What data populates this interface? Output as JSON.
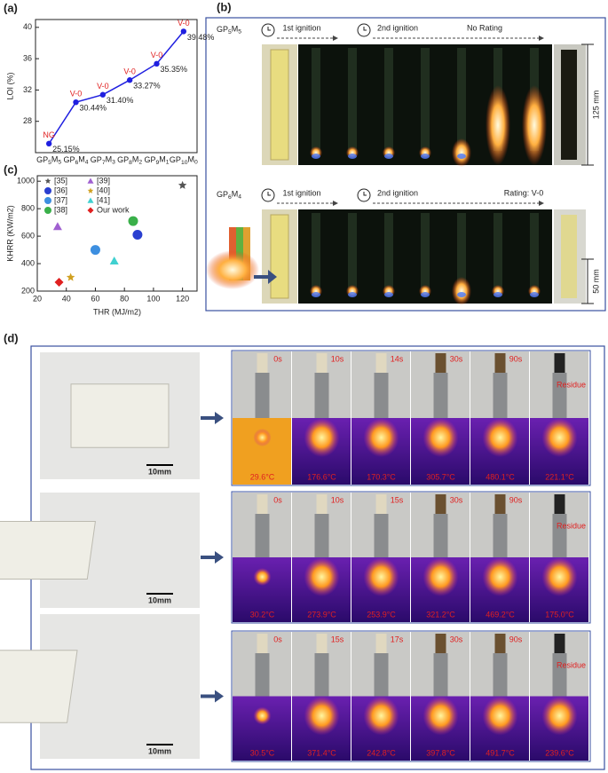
{
  "panel_labels": [
    "(a)",
    "(b)",
    "(c)",
    "(d)"
  ],
  "chart_data": [
    {
      "type": "line",
      "ylabel": "LOI (%)",
      "categories": [
        "GP5M5",
        "GP6M4",
        "GP7M3",
        "GP8M2",
        "GP9M1",
        "GP10M0"
      ],
      "values": [
        25.15,
        30.44,
        31.4,
        33.27,
        35.35,
        39.48
      ],
      "value_labels": [
        "25.15%",
        "30.44%",
        "31.40%",
        "33.27%",
        "35.35%",
        "39.48%"
      ],
      "annotations": [
        "NG",
        "V-0",
        "V-0",
        "V-0",
        "V-0",
        "V-0"
      ],
      "color": "#1f1fe0",
      "ylim": [
        24,
        41
      ],
      "yticks": [
        28,
        32,
        36,
        40
      ]
    },
    {
      "type": "scatter",
      "xlabel": "THR (MJ/m2)",
      "ylabel": "KHRR (KW/m2)",
      "xlim": [
        20,
        130
      ],
      "xticks": [
        20,
        40,
        60,
        80,
        100,
        120
      ],
      "ylim": [
        200,
        1040
      ],
      "yticks": [
        200,
        400,
        600,
        800,
        1000
      ],
      "series": [
        {
          "name": "[35]",
          "color": "#555555",
          "marker": "star",
          "x": [
            120
          ],
          "values": [
            970
          ]
        },
        {
          "name": "[36]",
          "color": "#2a3fd0",
          "marker": "circle",
          "x": [
            89
          ],
          "values": [
            610
          ]
        },
        {
          "name": "[37]",
          "color": "#3d8fe0",
          "marker": "circle",
          "x": [
            60
          ],
          "values": [
            500
          ]
        },
        {
          "name": "[38]",
          "color": "#3ab04a",
          "marker": "circle",
          "x": [
            86
          ],
          "values": [
            710
          ]
        },
        {
          "name": "[39]",
          "color": "#a060d0",
          "marker": "triangle",
          "x": [
            34
          ],
          "values": [
            670
          ]
        },
        {
          "name": "[40]",
          "color": "#d0a020",
          "marker": "star",
          "x": [
            43
          ],
          "values": [
            300
          ]
        },
        {
          "name": "[41]",
          "color": "#40d0d0",
          "marker": "triangle",
          "x": [
            73
          ],
          "values": [
            420
          ]
        },
        {
          "name": "Our work",
          "color": "#e02020",
          "marker": "diamond",
          "x": [
            35
          ],
          "values": [
            265
          ]
        }
      ]
    }
  ],
  "figure_b": {
    "rows": [
      {
        "sample": "GP5M5",
        "first": "1st ignition",
        "second": "2nd ignition",
        "rating": "No Rating",
        "dimension": "125 mm"
      },
      {
        "sample": "GP6M4",
        "first": "1st ignition",
        "second": "2nd ignition",
        "rating": "Rating: V-0",
        "dimension": "50 mm"
      }
    ]
  },
  "figure_d": {
    "scale": "10mm",
    "residue": "Residue",
    "rows": [
      {
        "times": [
          "0s",
          "10s",
          "14s",
          "30s",
          "90s"
        ],
        "temps": [
          "29.6°C",
          "176.6°C",
          "170.3°C",
          "305.7°C",
          "480.1°C",
          "221.1°C"
        ]
      },
      {
        "times": [
          "0s",
          "10s",
          "15s",
          "30s",
          "90s"
        ],
        "temps": [
          "30.2°C",
          "273.9°C",
          "253.9°C",
          "321.2°C",
          "469.2°C",
          "175.0°C"
        ]
      },
      {
        "times": [
          "0s",
          "15s",
          "17s",
          "30s",
          "90s"
        ],
        "temps": [
          "30.5°C",
          "371.4°C",
          "242.8°C",
          "397.8°C",
          "491.7°C",
          "239.6°C"
        ]
      }
    ]
  }
}
